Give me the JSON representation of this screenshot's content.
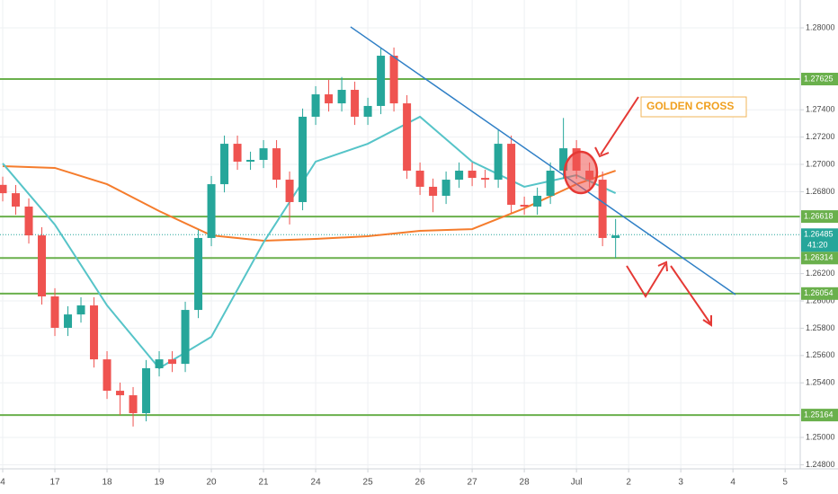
{
  "chart_data": {
    "type": "candlestick",
    "xlim": [
      -0.052,
      15.29
    ],
    "ylim": [
      1.2477,
      1.28204
    ],
    "xticks": [
      {
        "value": 0,
        "label": "4"
      },
      {
        "value": 1,
        "label": "17"
      },
      {
        "value": 2,
        "label": "18"
      },
      {
        "value": 3,
        "label": "19"
      },
      {
        "value": 4,
        "label": "20"
      },
      {
        "value": 5,
        "label": "21"
      },
      {
        "value": 6,
        "label": "24"
      },
      {
        "value": 7,
        "label": "25"
      },
      {
        "value": 8,
        "label": "26"
      },
      {
        "value": 9,
        "label": "27"
      },
      {
        "value": 10,
        "label": "28"
      },
      {
        "value": 11,
        "label": "Jul"
      },
      {
        "value": 12,
        "label": "2"
      },
      {
        "value": 13,
        "label": "3"
      },
      {
        "value": 14,
        "label": "4"
      },
      {
        "value": 15,
        "label": "5"
      }
    ],
    "yticks": [
      {
        "value": 1.28,
        "label": "1.28000"
      },
      {
        "value": 1.274,
        "label": "1.27400"
      },
      {
        "value": 1.272,
        "label": "1.27200"
      },
      {
        "value": 1.27,
        "label": "1.27000"
      },
      {
        "value": 1.268,
        "label": "1.26800"
      },
      {
        "value": 1.262,
        "label": "1.26200"
      },
      {
        "value": 1.26,
        "label": "1.26000"
      },
      {
        "value": 1.258,
        "label": "1.25800"
      },
      {
        "value": 1.256,
        "label": "1.25600"
      },
      {
        "value": 1.254,
        "label": "1.25400"
      },
      {
        "value": 1.25,
        "label": "1.25000"
      },
      {
        "value": 1.248,
        "label": "1.24800"
      }
    ],
    "grid": true,
    "up_color": "#26a69a",
    "down_color": "#ef5350",
    "x": [
      0,
      0.25,
      0.5,
      0.75,
      1,
      1.25,
      1.5,
      1.75,
      2,
      2.25,
      2.5,
      2.75,
      3,
      3.25,
      3.5,
      3.75,
      4,
      4.25,
      4.5,
      4.75,
      5,
      5.25,
      5.5,
      5.75,
      6,
      6.25,
      6.5,
      6.75,
      7,
      7.25,
      7.5,
      7.75,
      8,
      8.25,
      8.5,
      8.75,
      9,
      9.25,
      9.5,
      9.75,
      10,
      10.25,
      10.5,
      10.75,
      11,
      11.25,
      11.5,
      11.75
    ],
    "open": [
      1.2685,
      1.26789,
      1.26691,
      1.2648,
      1.26033,
      1.25803,
      1.25901,
      1.25967,
      1.25572,
      1.25342,
      1.25309,
      1.25178,
      1.25507,
      1.25572,
      1.25539,
      1.25934,
      1.26461,
      1.26855,
      1.27151,
      1.2702,
      1.27033,
      1.27118,
      1.26888,
      1.26724,
      1.27349,
      1.27513,
      1.27447,
      1.27546,
      1.27349,
      1.27428,
      1.27796,
      1.27447,
      1.26954,
      1.26836,
      1.2677,
      1.26888,
      1.26954,
      1.26901,
      1.26888,
      1.27151,
      1.26704,
      1.26691,
      1.2677,
      1.26954,
      1.27118,
      1.26954,
      1.26888,
      1.26461
    ],
    "high": [
      1.2691,
      1.26849,
      1.26751,
      1.2654,
      1.26093,
      1.25961,
      1.26027,
      1.26027,
      1.25632,
      1.25402,
      1.25369,
      1.25567,
      1.25632,
      1.25632,
      1.25994,
      1.26521,
      1.26915,
      1.27211,
      1.27211,
      1.27093,
      1.27178,
      1.27178,
      1.26948,
      1.27409,
      1.27573,
      1.2762,
      1.2764,
      1.27606,
      1.27488,
      1.2785,
      1.27856,
      1.27507,
      1.27014,
      1.26896,
      1.26948,
      1.27014,
      1.27014,
      1.26961,
      1.2725,
      1.27211,
      1.26764,
      1.2683,
      1.27014,
      1.2734,
      1.27178,
      1.27014,
      1.26948,
      1.266
    ],
    "low": [
      1.26729,
      1.26631,
      1.2642,
      1.25973,
      1.25743,
      1.25743,
      1.25841,
      1.25512,
      1.25282,
      1.25164,
      1.2508,
      1.25118,
      1.25447,
      1.25479,
      1.25479,
      1.25874,
      1.26401,
      1.26795,
      1.2696,
      1.2696,
      1.26973,
      1.26828,
      1.2656,
      1.26664,
      1.27289,
      1.27387,
      1.27387,
      1.27289,
      1.27289,
      1.27368,
      1.27387,
      1.26894,
      1.26776,
      1.2665,
      1.2671,
      1.26828,
      1.26841,
      1.26828,
      1.26828,
      1.26644,
      1.26631,
      1.26631,
      1.2671,
      1.26894,
      1.26894,
      1.26828,
      1.26401,
      1.26314
    ],
    "close": [
      1.26789,
      1.26691,
      1.2648,
      1.26033,
      1.25803,
      1.25901,
      1.25967,
      1.25572,
      1.25342,
      1.25309,
      1.25178,
      1.25507,
      1.25572,
      1.25539,
      1.25934,
      1.26461,
      1.26855,
      1.27151,
      1.2702,
      1.27033,
      1.27118,
      1.26888,
      1.26724,
      1.27349,
      1.27513,
      1.27447,
      1.27546,
      1.27349,
      1.27428,
      1.27796,
      1.27447,
      1.26954,
      1.26836,
      1.2677,
      1.26888,
      1.26954,
      1.26901,
      1.26888,
      1.27151,
      1.26704,
      1.26691,
      1.2677,
      1.26954,
      1.27118,
      1.26954,
      1.26888,
      1.26461,
      1.2648
    ],
    "ma_x": [
      0,
      1,
      2,
      3,
      4,
      5,
      6,
      7,
      8,
      9,
      10,
      11,
      11.75
    ],
    "moving_averages": [
      {
        "color": "#f57c2c",
        "values": [
          1.26987,
          1.26974,
          1.26855,
          1.26658,
          1.2648,
          1.26441,
          1.26454,
          1.26474,
          1.26513,
          1.26526,
          1.26678,
          1.26855,
          1.26954
        ]
      },
      {
        "color": "#56c4c8",
        "values": [
          1.27007,
          1.26559,
          1.25967,
          1.25507,
          1.25737,
          1.26428,
          1.2702,
          1.27151,
          1.27349,
          1.2702,
          1.26836,
          1.26921,
          1.26789
        ]
      }
    ],
    "level_color": "#6ab04c",
    "levels": [
      {
        "value": 1.27625,
        "label": "1.27625"
      },
      {
        "value": 1.26618,
        "label": "1.26618"
      },
      {
        "value": 1.26314,
        "label": "1.26314"
      },
      {
        "value": 1.26054,
        "label": "1.26054"
      },
      {
        "value": 1.25164,
        "label": "1.25164"
      }
    ],
    "last_price": {
      "value": 1.26485,
      "label": "1.26485"
    },
    "countdown": "41:20",
    "trendline": {
      "color": "#2f7fc6",
      "x": [
        6.67,
        14.05
      ],
      "values": [
        1.28007,
        1.26046
      ]
    },
    "annotation": "GOLDEN CROSS"
  }
}
